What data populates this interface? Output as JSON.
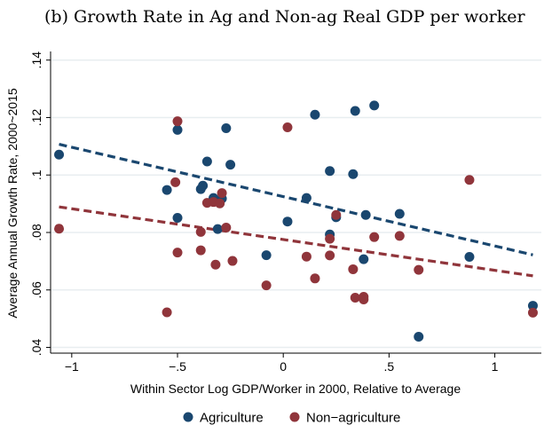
{
  "title": "(b) Growth Rate in Ag and Non-ag Real GDP per worker",
  "chart_data": {
    "type": "scatter",
    "xlabel": "Within Sector Log GDP/Worker in 2000, Relative to Average",
    "ylabel": "Average Annual Growth Rate, 2000~2015",
    "xlim": [
      -1.1,
      1.22
    ],
    "ylim": [
      0.038,
      0.143
    ],
    "xticks": [
      -1,
      -0.5,
      0,
      0.5,
      1
    ],
    "xtick_labels": [
      "−1",
      "−.5",
      "0",
      ".5",
      "1"
    ],
    "yticks": [
      0.04,
      0.06,
      0.08,
      0.1,
      0.12,
      0.14
    ],
    "ytick_labels": [
      ".04",
      ".06",
      ".08",
      ".1",
      ".12",
      ".14"
    ],
    "grid": "horizontal",
    "legend_position": "bottom",
    "series": [
      {
        "name": "Agriculture",
        "color": "#1a476f",
        "fit": {
          "x": [
            -1.06,
            1.18
          ],
          "y": [
            0.1107,
            0.0722
          ]
        },
        "points": [
          [
            -1.06,
            0.1071
          ],
          [
            -0.55,
            0.0948
          ],
          [
            -0.5,
            0.1157
          ],
          [
            -0.5,
            0.0851
          ],
          [
            -0.39,
            0.0951
          ],
          [
            -0.38,
            0.0963
          ],
          [
            -0.36,
            0.1047
          ],
          [
            -0.33,
            0.092
          ],
          [
            -0.31,
            0.0812
          ],
          [
            -0.29,
            0.0918
          ],
          [
            -0.27,
            0.1163
          ],
          [
            -0.25,
            0.1036
          ],
          [
            -0.08,
            0.0721
          ],
          [
            0.02,
            0.0838
          ],
          [
            0.11,
            0.092
          ],
          [
            0.15,
            0.121
          ],
          [
            0.22,
            0.0793
          ],
          [
            0.22,
            0.1014
          ],
          [
            0.25,
            0.0853
          ],
          [
            0.33,
            0.1003
          ],
          [
            0.34,
            0.1223
          ],
          [
            0.38,
            0.0707
          ],
          [
            0.39,
            0.0861
          ],
          [
            0.43,
            0.1242
          ],
          [
            0.55,
            0.0865
          ],
          [
            0.64,
            0.0437
          ],
          [
            0.88,
            0.0715
          ],
          [
            1.18,
            0.0545
          ]
        ]
      },
      {
        "name": "Non−agriculture",
        "color": "#90353b",
        "fit": {
          "x": [
            -1.06,
            1.18
          ],
          "y": [
            0.0889,
            0.0649
          ]
        },
        "points": [
          [
            -1.06,
            0.0813
          ],
          [
            -0.55,
            0.0522
          ],
          [
            -0.5,
            0.1187
          ],
          [
            -0.51,
            0.0975
          ],
          [
            -0.5,
            0.073
          ],
          [
            -0.39,
            0.0802
          ],
          [
            -0.39,
            0.0738
          ],
          [
            -0.36,
            0.0903
          ],
          [
            -0.33,
            0.0906
          ],
          [
            -0.32,
            0.0688
          ],
          [
            -0.3,
            0.0901
          ],
          [
            -0.29,
            0.0937
          ],
          [
            -0.27,
            0.0817
          ],
          [
            -0.24,
            0.0701
          ],
          [
            -0.08,
            0.0616
          ],
          [
            0.02,
            0.1166
          ],
          [
            0.11,
            0.0716
          ],
          [
            0.15,
            0.064
          ],
          [
            0.22,
            0.0778
          ],
          [
            0.22,
            0.072
          ],
          [
            0.25,
            0.0861
          ],
          [
            0.33,
            0.0672
          ],
          [
            0.34,
            0.0573
          ],
          [
            0.38,
            0.0576
          ],
          [
            0.38,
            0.0567
          ],
          [
            0.43,
            0.0784
          ],
          [
            0.55,
            0.0788
          ],
          [
            0.64,
            0.067
          ],
          [
            0.88,
            0.0983
          ],
          [
            1.18,
            0.0521
          ]
        ]
      }
    ]
  }
}
